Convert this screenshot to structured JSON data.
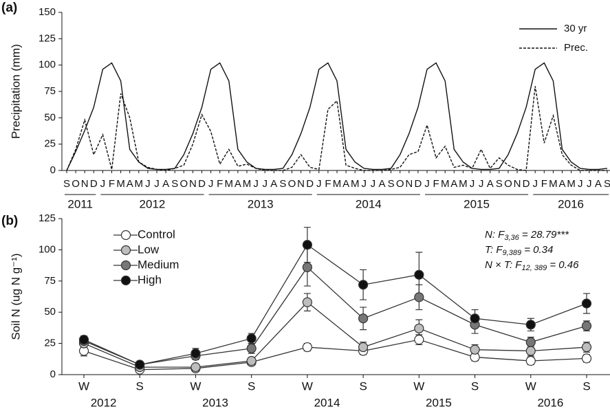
{
  "chart_data": [
    {
      "type": "line",
      "panel": "(a)",
      "ylabel": "Precipitation (mm)",
      "categories": [
        "S",
        "O",
        "N",
        "D",
        "J",
        "F",
        "M",
        "A",
        "M",
        "J",
        "J",
        "A",
        "S",
        "O",
        "N",
        "D",
        "J",
        "F",
        "M",
        "A",
        "M",
        "J",
        "J",
        "A",
        "S",
        "O",
        "N",
        "D",
        "J",
        "F",
        "M",
        "A",
        "M",
        "J",
        "J",
        "A",
        "S",
        "O",
        "N",
        "D",
        "J",
        "F",
        "M",
        "A",
        "M",
        "J",
        "J",
        "A",
        "S",
        "O",
        "N",
        "D",
        "J",
        "F",
        "M",
        "A",
        "M",
        "J",
        "J",
        "A",
        "S"
      ],
      "years": [
        "2011",
        "2012",
        "2013",
        "2014",
        "2015",
        "2016"
      ],
      "ylim": [
        0,
        150
      ],
      "yticks": [
        0,
        25,
        50,
        75,
        100,
        125,
        150
      ],
      "legend": "upper right",
      "series": [
        {
          "name": "30 yr",
          "color": "#111",
          "dash": false,
          "values": [
            0,
            18,
            38,
            60,
            96,
            102,
            85,
            20,
            8,
            2,
            1,
            1,
            2,
            15,
            35,
            60,
            96,
            102,
            85,
            20,
            8,
            2,
            1,
            1,
            2,
            15,
            35,
            60,
            96,
            102,
            85,
            20,
            8,
            2,
            1,
            1,
            2,
            15,
            35,
            60,
            96,
            102,
            85,
            20,
            8,
            2,
            1,
            1,
            2,
            15,
            35,
            60,
            96,
            102,
            85,
            20,
            8,
            2,
            1,
            1,
            2
          ]
        },
        {
          "name": "Prec.",
          "color": "#111",
          "dash": true,
          "values": [
            0,
            20,
            48,
            15,
            34,
            1,
            73,
            50,
            8,
            3,
            1,
            0,
            2,
            5,
            25,
            53,
            37,
            6,
            20,
            4,
            6,
            2,
            0,
            0,
            0,
            3,
            15,
            3,
            1,
            58,
            66,
            5,
            2,
            0,
            0,
            0,
            1,
            3,
            15,
            18,
            43,
            12,
            23,
            3,
            5,
            2,
            20,
            2,
            12,
            5,
            1,
            0,
            80,
            26,
            52,
            15,
            5,
            0,
            0,
            0,
            0
          ]
        }
      ]
    },
    {
      "type": "line",
      "panel": "(b)",
      "ylabel": "Soil N (ug N g⁻¹)",
      "categories": [
        "W",
        "S",
        "W",
        "S",
        "W",
        "S",
        "W",
        "S",
        "W",
        "S"
      ],
      "years": [
        "2012",
        "2013",
        "2014",
        "2015",
        "2016"
      ],
      "ylim": [
        0,
        125
      ],
      "yticks": [
        0,
        25,
        50,
        75,
        100,
        125
      ],
      "legend": "upper left",
      "annotations": [
        [
          "N: F",
          "3,36",
          " = 28.79***"
        ],
        [
          "T: F",
          "9,389",
          " = 0.34"
        ],
        [
          "N × T: F",
          "12, 389",
          " = 0.46"
        ]
      ],
      "series": [
        {
          "name": "Control",
          "color": "#ffffff",
          "values": [
            19,
            4,
            5,
            10,
            22,
            19,
            28,
            14,
            11,
            13
          ],
          "errors": [
            4,
            1,
            1,
            2,
            3,
            3,
            4,
            3,
            3,
            3
          ]
        },
        {
          "name": "Low",
          "color": "#bdbdbd",
          "values": [
            25,
            6,
            6,
            11,
            58,
            22,
            37,
            20,
            19,
            22
          ],
          "errors": [
            3,
            1,
            1,
            2,
            7,
            4,
            7,
            4,
            4,
            4
          ]
        },
        {
          "name": "Medium",
          "color": "#777777",
          "values": [
            27,
            8,
            15,
            21,
            86,
            45,
            62,
            40,
            26,
            39
          ],
          "errors": [
            3,
            1,
            3,
            4,
            15,
            9,
            10,
            7,
            4,
            4
          ]
        },
        {
          "name": "High",
          "color": "#111111",
          "values": [
            28,
            8,
            17,
            29,
            104,
            72,
            80,
            45,
            40,
            57
          ],
          "errors": [
            3,
            1,
            4,
            4,
            14,
            12,
            18,
            7,
            5,
            8
          ]
        }
      ]
    }
  ]
}
